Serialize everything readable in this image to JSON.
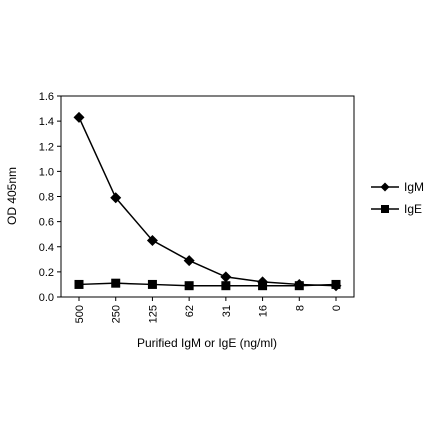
{
  "chart_data": {
    "type": "line",
    "title": "",
    "xlabel": "Purified IgM or IgE (ng/ml)",
    "ylabel": "OD 405nm",
    "categories": [
      "500",
      "250",
      "125",
      "62",
      "31",
      "16",
      "8",
      "0"
    ],
    "ylim": [
      0,
      1.6
    ],
    "yticks": [
      "0.0",
      "0.2",
      "0.4",
      "0.6",
      "0.8",
      "1.0",
      "1.2",
      "1.4",
      "1.6"
    ],
    "grid": false,
    "legend_position": "right",
    "series": [
      {
        "name": "IgM",
        "marker": "diamond",
        "color": "#000000",
        "values": [
          1.43,
          0.79,
          0.45,
          0.29,
          0.16,
          0.12,
          0.1,
          0.09
        ]
      },
      {
        "name": "IgE",
        "marker": "square",
        "color": "#000000",
        "values": [
          0.1,
          0.11,
          0.1,
          0.09,
          0.09,
          0.09,
          0.09,
          0.1
        ]
      }
    ]
  }
}
